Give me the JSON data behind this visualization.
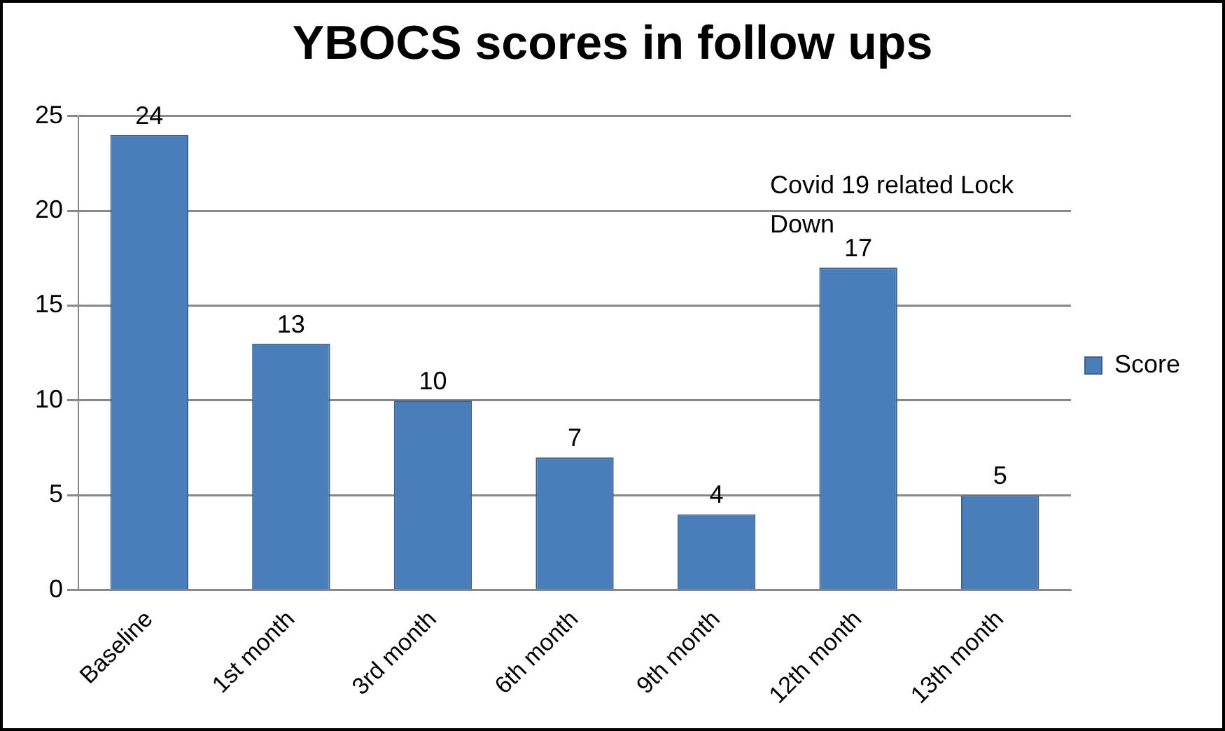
{
  "chart_data": {
    "type": "bar",
    "title": "YBOCS scores in follow ups",
    "categories": [
      "Baseline",
      "1st month",
      "3rd month",
      "6th month",
      "9th month",
      "12th month",
      "13th month"
    ],
    "series": [
      {
        "name": "Score",
        "color": "#4a7ebb",
        "values": [
          24,
          13,
          10,
          7,
          4,
          17,
          5
        ]
      }
    ],
    "ylim": [
      0,
      25
    ],
    "yticks": [
      0,
      5,
      10,
      15,
      20,
      25
    ],
    "grid": "y",
    "legend": "right",
    "data_labels": true,
    "annotations": [
      "Covid 19 related Lock Down"
    ]
  }
}
